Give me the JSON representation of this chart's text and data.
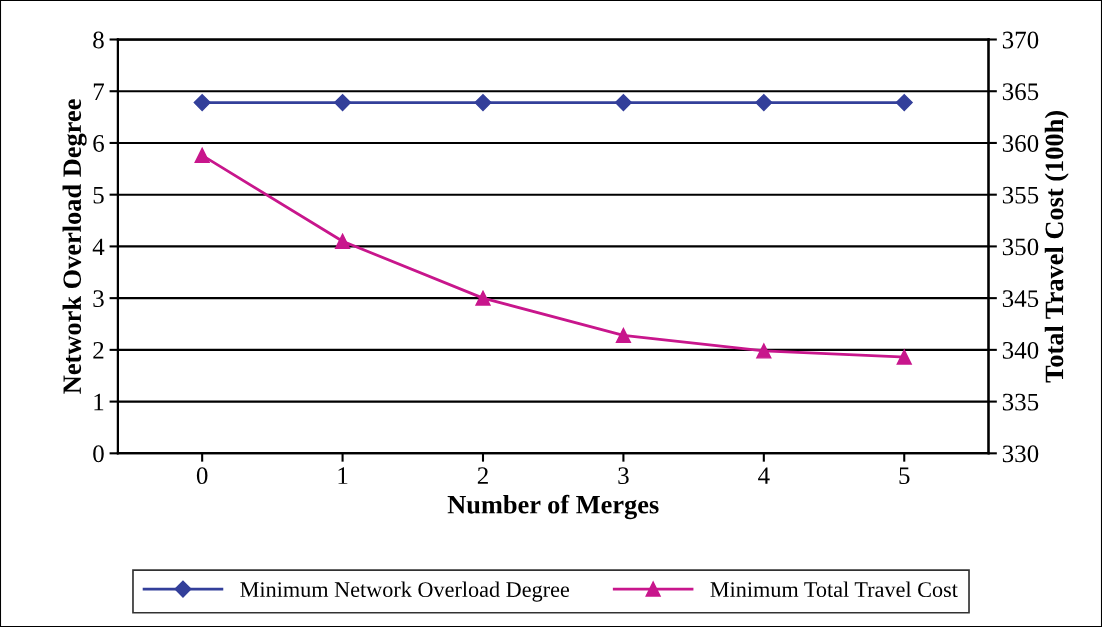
{
  "chart_data": {
    "type": "line",
    "xlabel": "Number of Merges",
    "ylabel": "Network Overload Degree",
    "y2label": "Total Travel Cost (100h)",
    "categories": [
      "0",
      "1",
      "2",
      "3",
      "4",
      "5"
    ],
    "series": [
      {
        "name": "Minimum Network Overload Degree",
        "color": "#333f9a",
        "marker": "diamond",
        "values": [
          6.78,
          6.78,
          6.78,
          6.78,
          6.78,
          6.78
        ]
      },
      {
        "name": "Minimum Total Travel Cost",
        "color": "#c8168c",
        "marker": "triangle",
        "axis": "y2",
        "values": [
          358.8,
          350.5,
          345.0,
          341.4,
          339.9,
          339.3
        ]
      }
    ],
    "ylim": [
      0,
      8
    ],
    "yticks": [
      0,
      1,
      2,
      3,
      4,
      5,
      6,
      7,
      8
    ],
    "y2lim": [
      330,
      370
    ],
    "y2ticks": [
      330,
      335,
      340,
      345,
      350,
      355,
      360,
      365,
      370
    ],
    "grid": "y",
    "legend": "bottom",
    "line_style": "solid"
  }
}
